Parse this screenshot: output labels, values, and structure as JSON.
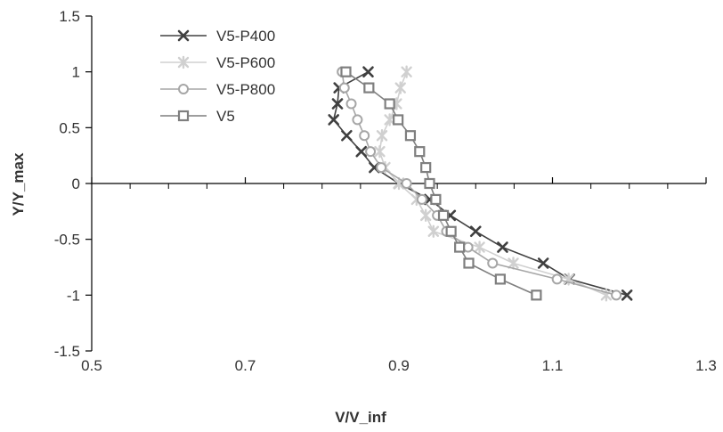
{
  "chart_data": {
    "type": "line",
    "xlabel": "V/V_inf",
    "ylabel": "Y/Y_max",
    "xlim": [
      0.5,
      1.3
    ],
    "ylim": [
      -1.5,
      1.5
    ],
    "x_ticks": [
      0.5,
      0.7,
      0.9,
      1.1,
      1.3
    ],
    "y_ticks": [
      1.5,
      1,
      0.5,
      0,
      -0.5,
      -1,
      -1.5
    ],
    "x_tick_labels": [
      "0.5",
      "0.7",
      "0.9",
      "1.1",
      "1.3"
    ],
    "y_tick_labels": [
      "1.5",
      "1",
      "0.5",
      "0",
      "-0.5",
      "-1",
      "-1.5"
    ],
    "grid": false,
    "legend_position": "top-left",
    "series": [
      {
        "name": "V5-P400",
        "marker": "x",
        "color": "#404040",
        "points": [
          {
            "x": 0.86,
            "y": 1.0
          },
          {
            "x": 0.822,
            "y": 0.857
          },
          {
            "x": 0.82,
            "y": 0.714
          },
          {
            "x": 0.815,
            "y": 0.571
          },
          {
            "x": 0.832,
            "y": 0.429
          },
          {
            "x": 0.851,
            "y": 0.286
          },
          {
            "x": 0.868,
            "y": 0.143
          },
          {
            "x": 0.9,
            "y": 0.0
          },
          {
            "x": 0.94,
            "y": -0.143
          },
          {
            "x": 0.967,
            "y": -0.286
          },
          {
            "x": 1.0,
            "y": -0.429
          },
          {
            "x": 1.035,
            "y": -0.571
          },
          {
            "x": 1.088,
            "y": -0.714
          },
          {
            "x": 1.122,
            "y": -0.857
          },
          {
            "x": 1.197,
            "y": -1.0
          }
        ]
      },
      {
        "name": "V5-P600",
        "marker": "asterisk",
        "color": "#d0d0d0",
        "points": [
          {
            "x": 0.91,
            "y": 1.0
          },
          {
            "x": 0.902,
            "y": 0.857
          },
          {
            "x": 0.897,
            "y": 0.714
          },
          {
            "x": 0.888,
            "y": 0.571
          },
          {
            "x": 0.878,
            "y": 0.429
          },
          {
            "x": 0.875,
            "y": 0.286
          },
          {
            "x": 0.882,
            "y": 0.143
          },
          {
            "x": 0.9,
            "y": 0.0
          },
          {
            "x": 0.923,
            "y": -0.143
          },
          {
            "x": 0.935,
            "y": -0.286
          },
          {
            "x": 0.945,
            "y": -0.429
          },
          {
            "x": 1.005,
            "y": -0.571
          },
          {
            "x": 1.049,
            "y": -0.714
          },
          {
            "x": 1.121,
            "y": -0.857
          },
          {
            "x": 1.17,
            "y": -1.0
          }
        ]
      },
      {
        "name": "V5-P800",
        "marker": "circle",
        "color": "#a6a6a6",
        "points": [
          {
            "x": 0.826,
            "y": 1.0
          },
          {
            "x": 0.829,
            "y": 0.857
          },
          {
            "x": 0.838,
            "y": 0.714
          },
          {
            "x": 0.846,
            "y": 0.571
          },
          {
            "x": 0.855,
            "y": 0.429
          },
          {
            "x": 0.863,
            "y": 0.286
          },
          {
            "x": 0.877,
            "y": 0.143
          },
          {
            "x": 0.91,
            "y": 0.0
          },
          {
            "x": 0.93,
            "y": -0.143
          },
          {
            "x": 0.95,
            "y": -0.286
          },
          {
            "x": 0.962,
            "y": -0.429
          },
          {
            "x": 0.99,
            "y": -0.571
          },
          {
            "x": 1.022,
            "y": -0.714
          },
          {
            "x": 1.106,
            "y": -0.857
          },
          {
            "x": 1.183,
            "y": -1.0
          }
        ]
      },
      {
        "name": "V5",
        "marker": "square",
        "color": "#7f7f7f",
        "points": [
          {
            "x": 0.831,
            "y": 1.0
          },
          {
            "x": 0.861,
            "y": 0.857
          },
          {
            "x": 0.888,
            "y": 0.714
          },
          {
            "x": 0.899,
            "y": 0.571
          },
          {
            "x": 0.915,
            "y": 0.429
          },
          {
            "x": 0.927,
            "y": 0.286
          },
          {
            "x": 0.935,
            "y": 0.143
          },
          {
            "x": 0.94,
            "y": 0.0
          },
          {
            "x": 0.948,
            "y": -0.143
          },
          {
            "x": 0.958,
            "y": -0.286
          },
          {
            "x": 0.968,
            "y": -0.429
          },
          {
            "x": 0.979,
            "y": -0.571
          },
          {
            "x": 0.991,
            "y": -0.714
          },
          {
            "x": 1.032,
            "y": -0.857
          },
          {
            "x": 1.079,
            "y": -1.0
          }
        ]
      }
    ]
  }
}
